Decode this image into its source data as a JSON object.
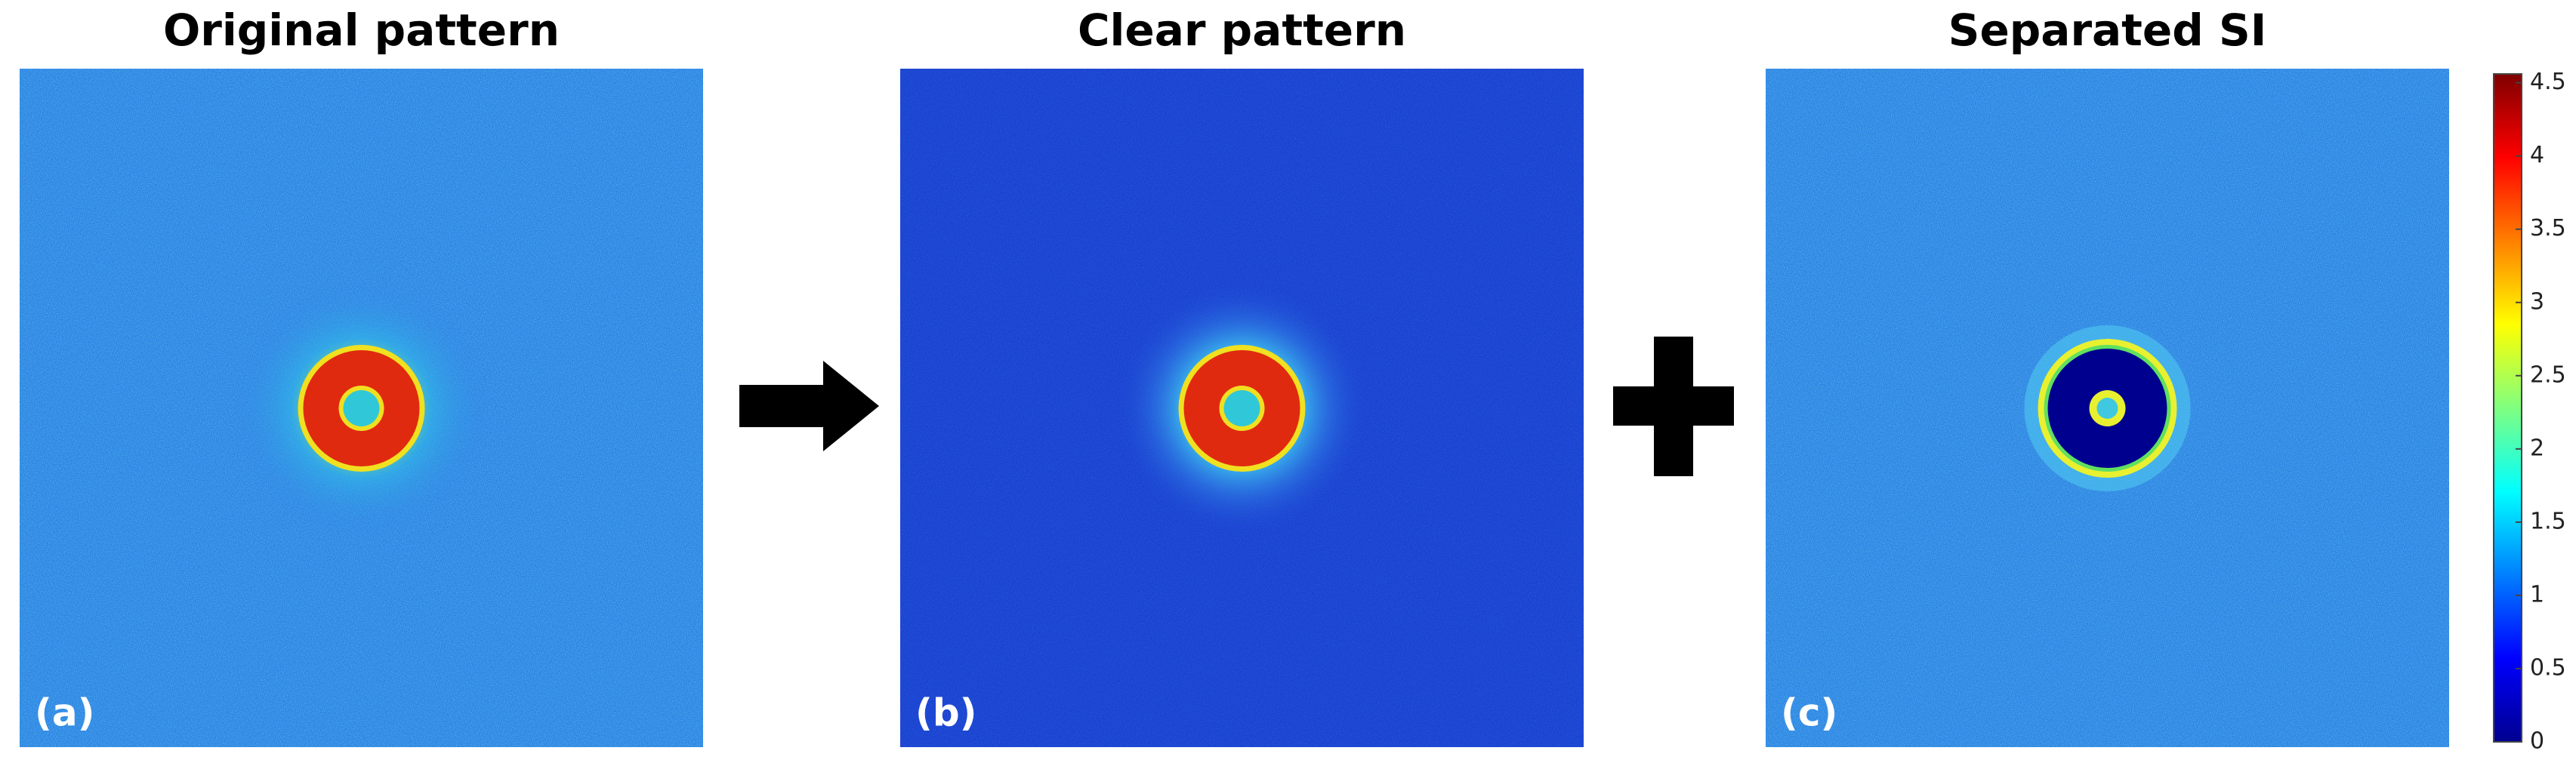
{
  "panels": [
    {
      "title": "Original pattern",
      "label": "(a)"
    },
    {
      "title": "Clear pattern",
      "label": "(b)"
    },
    {
      "title": "Separated SI",
      "label": "(c)"
    }
  ],
  "colorbar": {
    "lim": [
      0,
      4.56
    ],
    "ticks": [
      0,
      0.5,
      1,
      1.5,
      2,
      2.5,
      3,
      3.5,
      4,
      4.5
    ]
  }
}
